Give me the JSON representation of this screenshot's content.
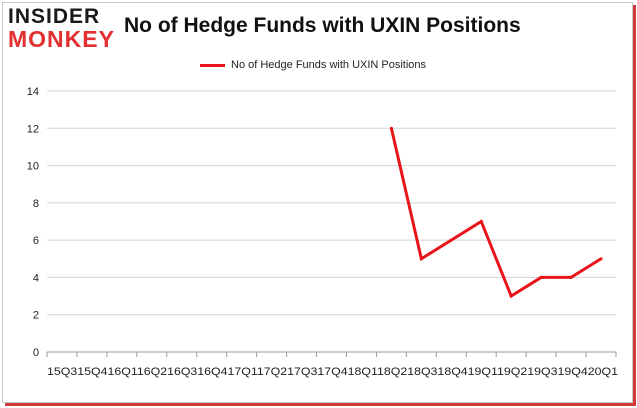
{
  "header": {
    "logo_line1": "INSIDER",
    "logo_line2": "MONKEY",
    "title": "No of Hedge Funds with UXIN Positions"
  },
  "colors": {
    "series": "#e8141a",
    "logo_accent": "#e23030",
    "frame_shadow": "#cf3a3a"
  },
  "chart_data": {
    "type": "line",
    "title": "No of Hedge Funds with UXIN Positions",
    "xlabel": "",
    "ylabel": "",
    "ylim": [
      0,
      14
    ],
    "yticks": [
      0,
      2,
      4,
      6,
      8,
      10,
      12,
      14
    ],
    "grid": true,
    "legend_position": "top-center",
    "categories": [
      "2015Q3",
      "2015Q4",
      "2016Q1",
      "2016Q2",
      "2016Q3",
      "2016Q4",
      "2017Q1",
      "2017Q2",
      "2017Q3",
      "2017Q4",
      "2018Q1",
      "2018Q2",
      "2018Q3",
      "2018Q4",
      "2019Q1",
      "2019Q2",
      "2019Q3",
      "2019Q4",
      "2020Q1"
    ],
    "x_tick_labels": "15Q315Q416Q116Q216Q316Q417Q117Q217Q317Q418Q118Q218Q318Q419Q119Q219Q319Q420Q1",
    "series": [
      {
        "name": "No of Hedge Funds with UXIN Positions",
        "values": [
          null,
          null,
          null,
          null,
          null,
          null,
          null,
          null,
          null,
          null,
          null,
          12,
          5,
          6,
          7,
          3,
          4,
          4,
          5
        ]
      }
    ]
  }
}
